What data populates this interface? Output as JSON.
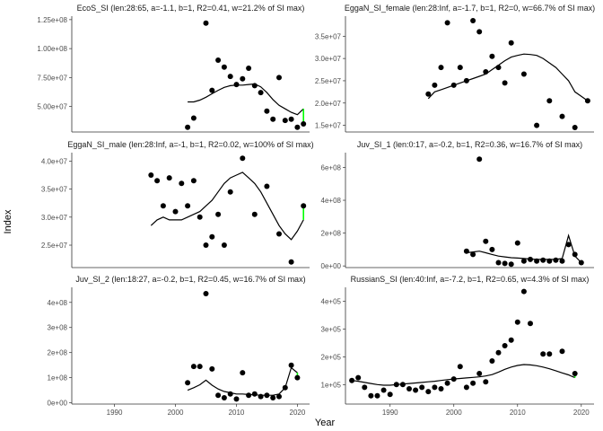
{
  "figure": {
    "xlabel": "Year",
    "ylabel": "Index"
  },
  "chart_data": [
    {
      "type": "scatter",
      "title": "EcoS_SI (len:28:65, a=-1.1, b=1, R2=0.41, w=21.2% of SI max)",
      "xlim": [
        1983,
        2022
      ],
      "ylim": [
        28000000,
        128000000
      ],
      "yticks": [
        50000000,
        75000000,
        100000000,
        125000000
      ],
      "ytick_labels": [
        "5.00e+07",
        "7.50e+07",
        "1.00e+08",
        "1.25e+08"
      ],
      "xticks": [],
      "xtick_labels": [],
      "points": [
        [
          2002,
          32000000
        ],
        [
          2003,
          40000000
        ],
        [
          2005,
          122000000
        ],
        [
          2006,
          64000000
        ],
        [
          2007,
          90000000
        ],
        [
          2008,
          84000000
        ],
        [
          2009,
          76000000
        ],
        [
          2010,
          69000000
        ],
        [
          2011,
          74000000
        ],
        [
          2012,
          83000000
        ],
        [
          2013,
          68000000
        ],
        [
          2014,
          62000000
        ],
        [
          2015,
          46000000
        ],
        [
          2016,
          39000000
        ],
        [
          2017,
          75000000
        ],
        [
          2018,
          38000000
        ],
        [
          2019,
          39000000
        ],
        [
          2020,
          32000000
        ],
        [
          2021,
          35000000
        ]
      ],
      "fit": [
        [
          2002,
          54000000
        ],
        [
          2003,
          54000000
        ],
        [
          2004,
          55500000
        ],
        [
          2005,
          58000000
        ],
        [
          2006,
          61000000
        ],
        [
          2007,
          64000000
        ],
        [
          2008,
          66500000
        ],
        [
          2009,
          68000000
        ],
        [
          2010,
          68500000
        ],
        [
          2011,
          68500000
        ],
        [
          2012,
          69000000
        ],
        [
          2013,
          69500000
        ],
        [
          2014,
          67000000
        ],
        [
          2015,
          62000000
        ],
        [
          2016,
          56000000
        ],
        [
          2017,
          51000000
        ],
        [
          2018,
          48000000
        ],
        [
          2019,
          45000000
        ],
        [
          2020,
          43000000
        ],
        [
          2021,
          48000000
        ]
      ],
      "residual": [
        2021,
        35000000,
        48000000
      ]
    },
    {
      "type": "scatter",
      "title": "EggaN_SI_female (len:28:Inf, a=-1.7, b=1, R2=0, w=66.7% of SI max)",
      "xlim": [
        1983,
        2022
      ],
      "ylim": [
        13500000,
        39500000
      ],
      "yticks": [
        15000000,
        20000000,
        25000000,
        30000000,
        35000000
      ],
      "ytick_labels": [
        "1.5e+07",
        "2.0e+07",
        "2.5e+07",
        "3.0e+07",
        "3.5e+07"
      ],
      "xticks": [],
      "xtick_labels": [],
      "points": [
        [
          1996,
          22000000
        ],
        [
          1997,
          24000000
        ],
        [
          1998,
          28000000
        ],
        [
          1999,
          38000000
        ],
        [
          2000,
          24000000
        ],
        [
          2001,
          28000000
        ],
        [
          2002,
          25000000
        ],
        [
          2003,
          38500000
        ],
        [
          2004,
          36000000
        ],
        [
          2005,
          27000000
        ],
        [
          2006,
          30500000
        ],
        [
          2007,
          28000000
        ],
        [
          2008,
          24500000
        ],
        [
          2009,
          33500000
        ],
        [
          2011,
          26500000
        ],
        [
          2013,
          15000000
        ],
        [
          2015,
          20500000
        ],
        [
          2017,
          17000000
        ],
        [
          2019,
          14500000
        ],
        [
          2021,
          20500000
        ]
      ],
      "fit": [
        [
          1996,
          21000000
        ],
        [
          1997,
          22500000
        ],
        [
          1998,
          23000000
        ],
        [
          1999,
          23500000
        ],
        [
          2000,
          24000000
        ],
        [
          2001,
          24500000
        ],
        [
          2002,
          25000000
        ],
        [
          2003,
          25500000
        ],
        [
          2004,
          26000000
        ],
        [
          2005,
          26500000
        ],
        [
          2006,
          27500000
        ],
        [
          2007,
          28500000
        ],
        [
          2008,
          29500000
        ],
        [
          2009,
          30300000
        ],
        [
          2010,
          30700000
        ],
        [
          2011,
          31000000
        ],
        [
          2012,
          30900000
        ],
        [
          2013,
          30700000
        ],
        [
          2014,
          30000000
        ],
        [
          2015,
          29000000
        ],
        [
          2016,
          28000000
        ],
        [
          2017,
          26500000
        ],
        [
          2018,
          25000000
        ],
        [
          2019,
          22500000
        ],
        [
          2020,
          21500000
        ],
        [
          2021,
          20500000
        ]
      ]
    },
    {
      "type": "scatter",
      "title": "EggaN_SI_male (len:28:Inf, a=-1, b=1, R2=0.02, w=100% of SI max)",
      "xlim": [
        1983,
        2022
      ],
      "ylim": [
        21000000,
        41500000
      ],
      "yticks": [
        25000000,
        30000000,
        35000000,
        40000000
      ],
      "ytick_labels": [
        "2.5e+07",
        "3.0e+07",
        "3.5e+07",
        "4.0e+07"
      ],
      "xticks": [],
      "xtick_labels": [],
      "points": [
        [
          1996,
          37500000
        ],
        [
          1997,
          36500000
        ],
        [
          1998,
          32000000
        ],
        [
          1999,
          37000000
        ],
        [
          2000,
          31000000
        ],
        [
          2001,
          36000000
        ],
        [
          2002,
          32000000
        ],
        [
          2003,
          36500000
        ],
        [
          2004,
          30000000
        ],
        [
          2005,
          25000000
        ],
        [
          2006,
          26500000
        ],
        [
          2007,
          30500000
        ],
        [
          2008,
          25000000
        ],
        [
          2009,
          34500000
        ],
        [
          2011,
          40500000
        ],
        [
          2013,
          30500000
        ],
        [
          2015,
          35500000
        ],
        [
          2017,
          27000000
        ],
        [
          2019,
          22000000
        ],
        [
          2021,
          32000000
        ]
      ],
      "fit": [
        [
          1996,
          28500000
        ],
        [
          1997,
          29500000
        ],
        [
          1998,
          30000000
        ],
        [
          1999,
          29500000
        ],
        [
          2000,
          29500000
        ],
        [
          2001,
          29500000
        ],
        [
          2002,
          30000000
        ],
        [
          2003,
          30500000
        ],
        [
          2004,
          31000000
        ],
        [
          2005,
          32000000
        ],
        [
          2006,
          33000000
        ],
        [
          2007,
          34500000
        ],
        [
          2008,
          36000000
        ],
        [
          2009,
          37000000
        ],
        [
          2010,
          37500000
        ],
        [
          2011,
          38000000
        ],
        [
          2012,
          37000000
        ],
        [
          2013,
          36000000
        ],
        [
          2014,
          34500000
        ],
        [
          2015,
          32500000
        ],
        [
          2016,
          30500000
        ],
        [
          2017,
          28500000
        ],
        [
          2018,
          27000000
        ],
        [
          2019,
          26000000
        ],
        [
          2020,
          27500000
        ],
        [
          2021,
          29500000
        ]
      ],
      "residual": [
        2021,
        29500000,
        32000000
      ]
    },
    {
      "type": "scatter",
      "title": "Juv_SI_1 (len:0:17, a=-0.2, b=1, R2=0.36, w=16.7% of SI max)",
      "xlim": [
        1983,
        2022
      ],
      "ylim": [
        -10000000,
        690000000
      ],
      "yticks": [
        0,
        200000000,
        400000000,
        600000000
      ],
      "ytick_labels": [
        "0e+00",
        "2e+08",
        "4e+08",
        "6e+08"
      ],
      "xticks": [],
      "xtick_labels": [],
      "points": [
        [
          2002,
          90000000
        ],
        [
          2003,
          70000000
        ],
        [
          2004,
          650000000
        ],
        [
          2005,
          150000000
        ],
        [
          2006,
          100000000
        ],
        [
          2007,
          20000000
        ],
        [
          2008,
          15000000
        ],
        [
          2009,
          10000000
        ],
        [
          2010,
          140000000
        ],
        [
          2011,
          30000000
        ],
        [
          2012,
          40000000
        ],
        [
          2013,
          30000000
        ],
        [
          2014,
          35000000
        ],
        [
          2015,
          30000000
        ],
        [
          2016,
          35000000
        ],
        [
          2017,
          30000000
        ],
        [
          2018,
          130000000
        ],
        [
          2019,
          70000000
        ],
        [
          2020,
          20000000
        ]
      ],
      "fit": [
        [
          2002,
          80000000
        ],
        [
          2003,
          85000000
        ],
        [
          2004,
          90000000
        ],
        [
          2005,
          80000000
        ],
        [
          2006,
          70000000
        ],
        [
          2007,
          60000000
        ],
        [
          2008,
          55000000
        ],
        [
          2009,
          50000000
        ],
        [
          2010,
          48000000
        ],
        [
          2011,
          45000000
        ],
        [
          2012,
          42000000
        ],
        [
          2013,
          40000000
        ],
        [
          2014,
          40000000
        ],
        [
          2015,
          40000000
        ],
        [
          2016,
          40000000
        ],
        [
          2017,
          45000000
        ],
        [
          2018,
          185000000
        ],
        [
          2019,
          60000000
        ],
        [
          2020,
          20000000
        ]
      ]
    },
    {
      "type": "scatter",
      "title": "Juv_SI_2 (len:18:27, a=-0.2, b=1, R2=0.45, w=16.7% of SI max)",
      "xlim": [
        1983,
        2022
      ],
      "ylim": [
        -5000000,
        460000000
      ],
      "yticks": [
        0,
        100000000,
        200000000,
        300000000,
        400000000
      ],
      "ytick_labels": [
        "0e+00",
        "1e+08",
        "2e+08",
        "3e+08",
        "4e+08"
      ],
      "xticks": [
        1990,
        2000,
        2010,
        2020
      ],
      "xtick_labels": [
        "1990",
        "2000",
        "2010",
        "2020"
      ],
      "points": [
        [
          2002,
          80000000
        ],
        [
          2003,
          145000000
        ],
        [
          2004,
          145000000
        ],
        [
          2005,
          435000000
        ],
        [
          2006,
          135000000
        ],
        [
          2007,
          30000000
        ],
        [
          2008,
          20000000
        ],
        [
          2009,
          35000000
        ],
        [
          2010,
          15000000
        ],
        [
          2011,
          120000000
        ],
        [
          2012,
          30000000
        ],
        [
          2013,
          35000000
        ],
        [
          2014,
          25000000
        ],
        [
          2015,
          30000000
        ],
        [
          2016,
          20000000
        ],
        [
          2017,
          25000000
        ],
        [
          2018,
          60000000
        ],
        [
          2019,
          150000000
        ],
        [
          2020,
          100000000
        ]
      ],
      "fit": [
        [
          2002,
          50000000
        ],
        [
          2003,
          60000000
        ],
        [
          2004,
          72000000
        ],
        [
          2005,
          90000000
        ],
        [
          2006,
          70000000
        ],
        [
          2007,
          55000000
        ],
        [
          2008,
          45000000
        ],
        [
          2009,
          40000000
        ],
        [
          2010,
          35000000
        ],
        [
          2011,
          35000000
        ],
        [
          2012,
          33000000
        ],
        [
          2013,
          32000000
        ],
        [
          2014,
          30000000
        ],
        [
          2015,
          30000000
        ],
        [
          2016,
          30000000
        ],
        [
          2017,
          35000000
        ],
        [
          2018,
          60000000
        ],
        [
          2019,
          140000000
        ],
        [
          2020,
          120000000
        ]
      ],
      "residual": [
        2020,
        100000000,
        120000000
      ]
    },
    {
      "type": "scatter",
      "title": "RussianS_SI (len:40:Inf, a=-7.2, b=1, R2=0.65, w=4.3% of SI max)",
      "xlim": [
        1983,
        2022
      ],
      "ylim": [
        30000,
        450000
      ],
      "yticks": [
        100000,
        200000,
        300000,
        400000
      ],
      "ytick_labels": [
        "1e+05",
        "2e+05",
        "3e+05",
        "4e+05"
      ],
      "xticks": [
        1990,
        2000,
        2010,
        2020
      ],
      "xtick_labels": [
        "1990",
        "2000",
        "2010",
        "2020"
      ],
      "points": [
        [
          1984,
          115000
        ],
        [
          1985,
          125000
        ],
        [
          1986,
          90000
        ],
        [
          1987,
          60000
        ],
        [
          1988,
          60000
        ],
        [
          1989,
          80000
        ],
        [
          1990,
          65000
        ],
        [
          1991,
          100000
        ],
        [
          1992,
          100000
        ],
        [
          1993,
          85000
        ],
        [
          1994,
          80000
        ],
        [
          1995,
          90000
        ],
        [
          1996,
          75000
        ],
        [
          1997,
          90000
        ],
        [
          1998,
          85000
        ],
        [
          1999,
          105000
        ],
        [
          2000,
          120000
        ],
        [
          2001,
          165000
        ],
        [
          2002,
          90000
        ],
        [
          2003,
          105000
        ],
        [
          2004,
          140000
        ],
        [
          2005,
          110000
        ],
        [
          2006,
          185000
        ],
        [
          2007,
          215000
        ],
        [
          2008,
          240000
        ],
        [
          2009,
          260000
        ],
        [
          2010,
          325000
        ],
        [
          2011,
          435000
        ],
        [
          2012,
          320000
        ],
        [
          2014,
          210000
        ],
        [
          2015,
          210000
        ],
        [
          2017,
          220000
        ],
        [
          2019,
          140000
        ]
      ],
      "fit": [
        [
          1984,
          115000
        ],
        [
          1985,
          112000
        ],
        [
          1986,
          108000
        ],
        [
          1987,
          104000
        ],
        [
          1988,
          100000
        ],
        [
          1989,
          98000
        ],
        [
          1990,
          98000
        ],
        [
          1991,
          100000
        ],
        [
          1992,
          102000
        ],
        [
          1993,
          104000
        ],
        [
          1994,
          106000
        ],
        [
          1995,
          108000
        ],
        [
          1996,
          110000
        ],
        [
          1997,
          112000
        ],
        [
          1998,
          115000
        ],
        [
          1999,
          118000
        ],
        [
          2000,
          120000
        ],
        [
          2001,
          122000
        ],
        [
          2002,
          124000
        ],
        [
          2003,
          126000
        ],
        [
          2004,
          128000
        ],
        [
          2005,
          131000
        ],
        [
          2006,
          136000
        ],
        [
          2007,
          145000
        ],
        [
          2008,
          155000
        ],
        [
          2009,
          163000
        ],
        [
          2010,
          169000
        ],
        [
          2011,
          172000
        ],
        [
          2012,
          171000
        ],
        [
          2013,
          168000
        ],
        [
          2014,
          163000
        ],
        [
          2015,
          157000
        ],
        [
          2016,
          150000
        ],
        [
          2017,
          142000
        ],
        [
          2018,
          135000
        ],
        [
          2019,
          125000
        ]
      ],
      "residual": [
        2019,
        125000,
        140000
      ]
    }
  ]
}
